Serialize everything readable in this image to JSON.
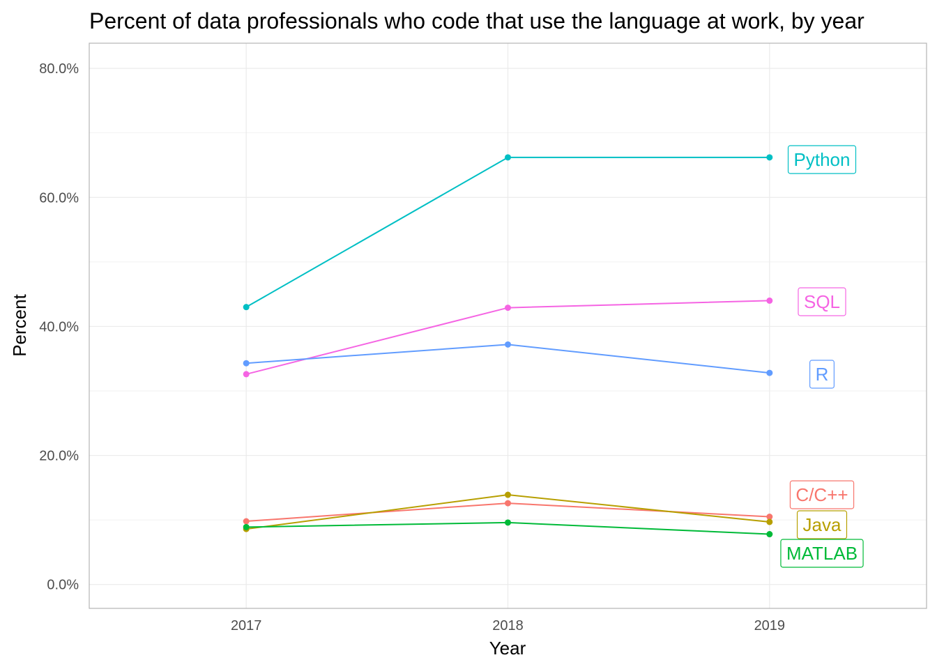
{
  "chart_data": {
    "type": "line",
    "title": "Percent of data professionals who code that use the language at work, by year",
    "xlabel": "Year",
    "ylabel": "Percent",
    "x": [
      2017,
      2018,
      2019
    ],
    "x_tick_labels": [
      "2017",
      "2018",
      "2019"
    ],
    "y_ticks": [
      0,
      20,
      40,
      60,
      80
    ],
    "y_tick_labels": [
      "0.0%",
      "20.0%",
      "40.0%",
      "60.0%",
      "80.0%"
    ],
    "ylim": [
      -3.7,
      83.9
    ],
    "xlim": [
      2016.4,
      2019.6
    ],
    "grid": true,
    "legend": "direct labels at right end of lines",
    "series": [
      {
        "name": "Python",
        "color": "#00BFC4",
        "values": [
          43.0,
          66.2,
          66.2
        ]
      },
      {
        "name": "SQL",
        "color": "#F564E3",
        "values": [
          32.6,
          42.9,
          44.0
        ]
      },
      {
        "name": "R",
        "color": "#619CFF",
        "values": [
          34.3,
          37.2,
          32.8
        ]
      },
      {
        "name": "C/C++",
        "color": "#F8766D",
        "values": [
          9.8,
          12.6,
          10.5
        ]
      },
      {
        "name": "Java",
        "color": "#B79F00",
        "values": [
          8.6,
          13.9,
          9.7
        ]
      },
      {
        "name": "MATLAB",
        "color": "#00BA38",
        "values": [
          8.9,
          9.6,
          7.8
        ]
      }
    ]
  }
}
